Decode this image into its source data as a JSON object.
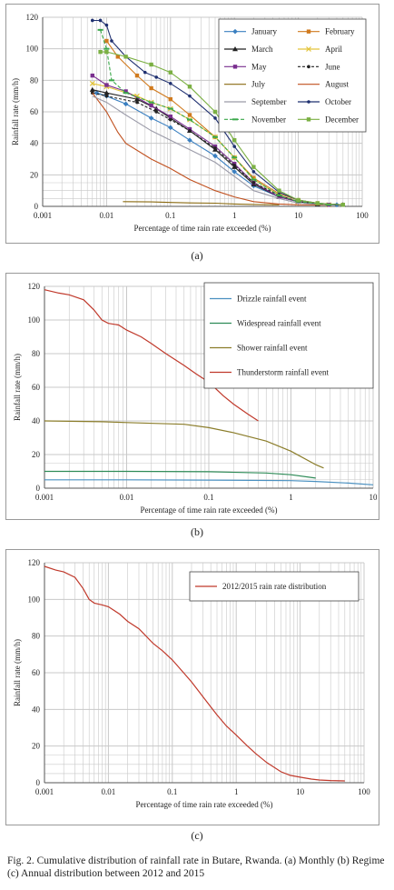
{
  "chart_data": [
    {
      "type": "line",
      "panel": "(a)",
      "xlabel": "Percentage of time rain rate exceeded (%)",
      "ylabel": "Rainfall rate (mm/h)",
      "xscale": "log",
      "xlim": [
        0.001,
        100
      ],
      "ylim": [
        0,
        120
      ],
      "xticks": [
        "0.001",
        "0.01",
        "0.1",
        "1",
        "10",
        "100"
      ],
      "yticks": [
        "0",
        "20",
        "40",
        "60",
        "80",
        "100",
        "120"
      ],
      "grid": true,
      "legend_position": "top-right",
      "series": [
        {
          "name": "January",
          "color": "#3a7fc0",
          "marker": "diamond",
          "x": [
            0.007,
            0.01,
            0.02,
            0.05,
            0.1,
            0.2,
            0.5,
            1,
            2,
            5,
            10,
            20,
            40
          ],
          "y": [
            72,
            70,
            65,
            56,
            50,
            42,
            32,
            22,
            13,
            6,
            3,
            1.5,
            1
          ]
        },
        {
          "name": "February",
          "color": "#d07a1e",
          "marker": "square",
          "x": [
            0.01,
            0.015,
            0.03,
            0.05,
            0.1,
            0.2,
            0.5,
            1,
            2,
            5,
            10,
            20,
            50
          ],
          "y": [
            105,
            95,
            83,
            75,
            68,
            58,
            44,
            31,
            18,
            8,
            4,
            2,
            1
          ]
        },
        {
          "name": "March",
          "color": "#222222",
          "marker": "triangle",
          "x": [
            0.006,
            0.01,
            0.03,
            0.06,
            0.1,
            0.2,
            0.5,
            1,
            2,
            5,
            10,
            20,
            50
          ],
          "y": [
            74,
            72,
            68,
            62,
            56,
            48,
            36,
            25,
            14,
            6,
            3,
            1.5,
            1
          ]
        },
        {
          "name": "April",
          "color": "#e3c43a",
          "marker": "x",
          "x": [
            0.006,
            0.01,
            0.03,
            0.05,
            0.1,
            0.2,
            0.5,
            1,
            2,
            5,
            10,
            30
          ],
          "y": [
            78,
            76,
            70,
            66,
            62,
            55,
            44,
            31,
            17,
            7,
            3,
            1
          ]
        },
        {
          "name": "May",
          "color": "#7a2f8f",
          "marker": "square",
          "x": [
            0.006,
            0.01,
            0.02,
            0.05,
            0.1,
            0.2,
            0.5,
            1,
            2,
            5,
            10,
            30
          ],
          "y": [
            83,
            77,
            73,
            64,
            57,
            49,
            38,
            27,
            15,
            6,
            3,
            1
          ]
        },
        {
          "name": "June",
          "color": "#222222",
          "marker": "dot",
          "dash": "3,2",
          "x": [
            0.006,
            0.01,
            0.03,
            0.06,
            0.1,
            0.2,
            0.5,
            1,
            2,
            5,
            10,
            20,
            50
          ],
          "y": [
            72,
            70,
            66,
            60,
            55,
            48,
            37,
            26,
            15,
            7,
            3,
            1.5,
            1
          ]
        },
        {
          "name": "July",
          "color": "#8a6a10",
          "marker": "none",
          "x": [
            0.018,
            0.05,
            0.1,
            0.2,
            0.5,
            1,
            2,
            5
          ],
          "y": [
            3,
            2.8,
            2.5,
            2.2,
            2,
            1.5,
            1.2,
            1
          ]
        },
        {
          "name": "August",
          "color": "#c0501e",
          "marker": "none",
          "x": [
            0.006,
            0.01,
            0.015,
            0.02,
            0.05,
            0.1,
            0.2,
            0.5,
            1,
            2,
            5,
            10,
            30
          ],
          "y": [
            72,
            60,
            47,
            40,
            30,
            24,
            17,
            10,
            6,
            3,
            1.5,
            1,
            0.8
          ]
        },
        {
          "name": "September",
          "color": "#9a9aa8",
          "marker": "none",
          "x": [
            0.006,
            0.01,
            0.02,
            0.05,
            0.1,
            0.2,
            0.5,
            1,
            2,
            5,
            10,
            30
          ],
          "y": [
            70,
            66,
            58,
            48,
            42,
            36,
            28,
            19,
            10,
            5,
            2,
            1
          ]
        },
        {
          "name": "October",
          "color": "#1f3070",
          "marker": "dot",
          "x": [
            0.006,
            0.008,
            0.01,
            0.012,
            0.02,
            0.04,
            0.06,
            0.1,
            0.2,
            0.5,
            1,
            2,
            5,
            10,
            20,
            50
          ],
          "y": [
            118,
            118,
            115,
            105,
            95,
            85,
            82,
            78,
            70,
            56,
            38,
            22,
            9,
            4,
            2,
            1
          ]
        },
        {
          "name": "November",
          "color": "#3aa84a",
          "marker": "dash",
          "dash": "4,2",
          "x": [
            0.008,
            0.01,
            0.012,
            0.02,
            0.05,
            0.1,
            0.2,
            0.5,
            1,
            2,
            5,
            10,
            30
          ],
          "y": [
            112,
            100,
            80,
            72,
            66,
            62,
            55,
            44,
            31,
            17,
            7,
            3,
            1
          ]
        },
        {
          "name": "December",
          "color": "#7bb043",
          "marker": "square",
          "x": [
            0.008,
            0.01,
            0.02,
            0.05,
            0.1,
            0.2,
            0.5,
            1,
            2,
            5,
            10,
            20,
            50
          ],
          "y": [
            98,
            98,
            95,
            90,
            85,
            76,
            60,
            42,
            25,
            10,
            4,
            2,
            1
          ]
        }
      ]
    },
    {
      "type": "line",
      "panel": "(b)",
      "xlabel": "Percentage of time rain rate exceeded (%)",
      "ylabel": "Rainfall rate (mm/h)",
      "xscale": "log",
      "xlim": [
        0.001,
        10
      ],
      "ylim": [
        0,
        120
      ],
      "xticks": [
        "0.001",
        "0.01",
        "0.1",
        "1",
        "10"
      ],
      "yticks": [
        "0",
        "20",
        "40",
        "60",
        "80",
        "100",
        "120"
      ],
      "grid": true,
      "legend_position": "top-right",
      "series": [
        {
          "name": "Drizzle rainfall event",
          "color": "#4a90c0",
          "x": [
            0.001,
            0.01,
            0.1,
            1,
            2,
            5,
            10
          ],
          "y": [
            5,
            5,
            4.8,
            4.5,
            4,
            3,
            2
          ]
        },
        {
          "name": "Widespread rainfall event",
          "color": "#2e8b57",
          "x": [
            0.001,
            0.01,
            0.1,
            0.5,
            1,
            2
          ],
          "y": [
            10,
            10,
            9.8,
            9,
            8,
            6
          ]
        },
        {
          "name": "Shower rainfall event",
          "color": "#8b7d2a",
          "x": [
            0.001,
            0.005,
            0.01,
            0.05,
            0.1,
            0.2,
            0.5,
            1,
            2,
            2.5
          ],
          "y": [
            40,
            39.5,
            39,
            38,
            36,
            33,
            28,
            22,
            14,
            12
          ]
        },
        {
          "name": "Thunderstorm rainfall event",
          "color": "#c0392b",
          "x": [
            0.001,
            0.0015,
            0.002,
            0.003,
            0.004,
            0.005,
            0.006,
            0.008,
            0.01,
            0.015,
            0.02,
            0.03,
            0.05,
            0.07,
            0.1,
            0.15,
            0.2,
            0.3,
            0.4
          ],
          "y": [
            118,
            116,
            115,
            112,
            106,
            100,
            98,
            97,
            94,
            90,
            86,
            80,
            73,
            68,
            63,
            55,
            50,
            44,
            40
          ]
        }
      ]
    },
    {
      "type": "line",
      "panel": "(c)",
      "xlabel": "Percentage of time rain rate exceeded (%)",
      "ylabel": "Rainfall rate (mm/h)",
      "xscale": "log",
      "xlim": [
        0.001,
        100
      ],
      "ylim": [
        0,
        120
      ],
      "xticks": [
        "0.001",
        "0.01",
        "0.1",
        "1",
        "10",
        "100"
      ],
      "yticks": [
        "0",
        "20",
        "40",
        "60",
        "80",
        "100",
        "120"
      ],
      "grid": true,
      "legend_position": "top-right",
      "series": [
        {
          "name": "2012/2015 rain rate distribution",
          "color": "#c0392b",
          "x": [
            0.001,
            0.0015,
            0.002,
            0.003,
            0.004,
            0.005,
            0.006,
            0.008,
            0.01,
            0.015,
            0.02,
            0.03,
            0.05,
            0.07,
            0.1,
            0.15,
            0.2,
            0.3,
            0.5,
            0.7,
            1,
            1.5,
            2,
            3,
            5,
            7,
            10,
            15,
            20,
            30,
            50
          ],
          "y": [
            118,
            116,
            115,
            112,
            106,
            100,
            98,
            97,
            96,
            92,
            88,
            84,
            76,
            72,
            67,
            60,
            55,
            47,
            37,
            31,
            26,
            20,
            16,
            11,
            6,
            4,
            3,
            2,
            1.5,
            1.2,
            1
          ]
        }
      ]
    }
  ],
  "panel_labels": [
    "(a)",
    "(b)",
    "(c)"
  ],
  "caption": "Fig. 2. Cumulative distribution of rainfall rate in Butare, Rwanda. (a) Monthly (b) Regime (c) Annual distribution between 2012 and 2015",
  "colors": {
    "grid": "#c8c8c8",
    "axis": "#555555",
    "panel_border": "#999999"
  }
}
